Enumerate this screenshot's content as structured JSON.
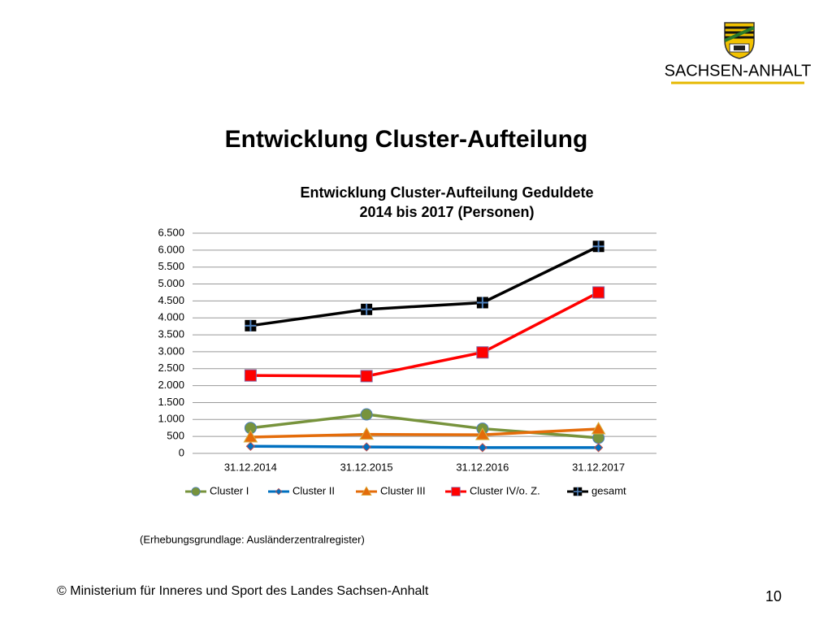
{
  "slide": {
    "logo_text": "SACHSEN-ANHALT",
    "heading": "Entwicklung Cluster-Aufteilung",
    "source": "(Erhebungsgrundlage: Ausländerzentralregister)",
    "footer": "© Ministerium für Inneres und Sport des Landes Sachsen-Anhalt",
    "page_number": "10"
  },
  "chart_data": {
    "type": "line",
    "title": "Entwicklung Cluster-Aufteilung Geduldete",
    "subtitle": "2014 bis 2017 (Personen)",
    "categories": [
      "31.12.2014",
      "31.12.2015",
      "31.12.2016",
      "31.12.2017"
    ],
    "series": [
      {
        "name": "Cluster I",
        "color": "#77933c",
        "marker": "circle",
        "values": [
          750,
          1150,
          730,
          460
        ]
      },
      {
        "name": "Cluster II",
        "color": "#0070c0",
        "marker": "diamond",
        "values": [
          210,
          190,
          170,
          170
        ]
      },
      {
        "name": "Cluster III",
        "color": "#e46c0a",
        "marker": "triangle",
        "values": [
          480,
          560,
          550,
          720
        ]
      },
      {
        "name": "Cluster IV/o. Z.",
        "color": "#ff0000",
        "marker": "square",
        "values": [
          2300,
          2280,
          2980,
          4750
        ]
      },
      {
        "name": "gesamt",
        "color": "#000000",
        "marker": "plus-square",
        "values": [
          3770,
          4250,
          4450,
          6110
        ]
      }
    ],
    "ylim": [
      0,
      6500
    ],
    "yticks": [
      0,
      500,
      {
        "value": 1000,
        "label": "1.000"
      },
      {
        "value": 1500,
        "label": "1.500"
      },
      {
        "value": 2000,
        "label": "2.000"
      },
      {
        "value": 2500,
        "label": "2.500"
      },
      {
        "value": 3000,
        "label": "3.000"
      },
      {
        "value": 3500,
        "label": "3.500"
      },
      {
        "value": 4000,
        "label": "4.000"
      },
      {
        "value": 4500,
        "label": "4.500"
      },
      {
        "value": 5000,
        "label": "5.000"
      },
      {
        "value": 5500,
        "label": "5.500"
      },
      {
        "value": 6000,
        "label": "6.000"
      },
      {
        "value": 6500,
        "label": "6.500"
      }
    ],
    "grid": true,
    "legend": "bottom"
  }
}
